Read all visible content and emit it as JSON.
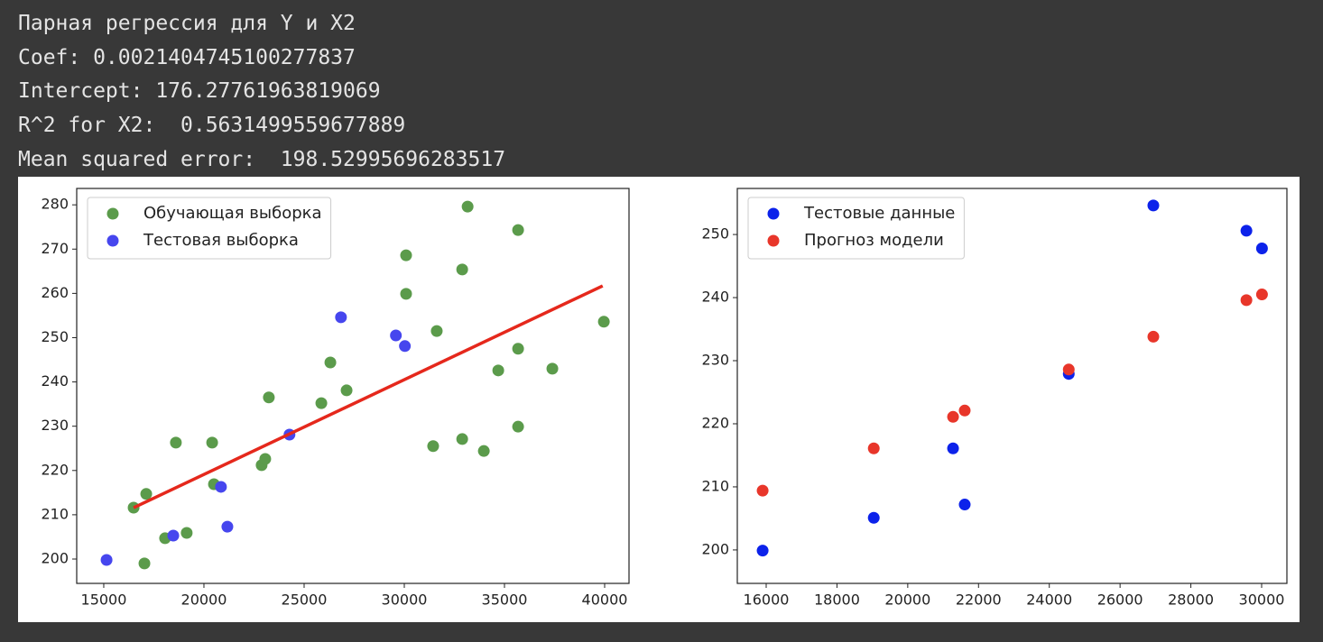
{
  "output_lines": [
    "Парная регрессия для Y и X2",
    "Coef: 0.0021404745100277837",
    "Intercept: 176.27761963819069",
    "R^2 for X2:  0.5631499559677889",
    "Mean squared error:  198.52995696283517"
  ],
  "chart_data": [
    {
      "type": "scatter",
      "xlim": [
        13650,
        41216
      ],
      "ylim": [
        194.5,
        283.7
      ],
      "xticks": [
        15000,
        20000,
        25000,
        30000,
        35000,
        40000
      ],
      "yticks": [
        200,
        210,
        220,
        230,
        240,
        250,
        260,
        270,
        280
      ],
      "legend": "upper left",
      "series": [
        {
          "name": "Обучающая выборка",
          "type": "scatter",
          "color": "#5b9b4b",
          "x": [
            16490,
            17120,
            17030,
            18060,
            19140,
            18600,
            20410,
            20500,
            22880,
            23060,
            23240,
            25860,
            26310,
            27120,
            30090,
            30090,
            31620,
            31440,
            32890,
            33160,
            32890,
            33970,
            34690,
            35680,
            35680,
            35680,
            37390,
            39960
          ],
          "values": [
            211.6,
            214.7,
            199.0,
            204.7,
            205.9,
            226.3,
            226.3,
            216.9,
            221.2,
            222.6,
            236.5,
            235.2,
            244.4,
            238.1,
            259.9,
            268.6,
            251.5,
            225.5,
            265.4,
            279.6,
            227.1,
            224.4,
            242.6,
            274.3,
            247.5,
            229.9,
            243.0,
            253.6
          ]
        },
        {
          "name": "Тестовая выборка",
          "type": "scatter",
          "color": "#4646ee",
          "x": [
            15140,
            18470,
            20850,
            21170,
            24270,
            26840,
            29580,
            30030
          ],
          "values": [
            199.8,
            205.3,
            216.3,
            207.3,
            228.1,
            254.6,
            250.5,
            248.1
          ]
        },
        {
          "type": "line",
          "color": "#e5281c",
          "x": [
            16490,
            39900
          ],
          "values": [
            211.6,
            261.7
          ]
        }
      ]
    },
    {
      "type": "scatter",
      "xlim": [
        15184,
        30714
      ],
      "ylim": [
        194.7,
        257.3
      ],
      "xticks": [
        16000,
        18000,
        20000,
        22000,
        24000,
        26000,
        28000,
        30000
      ],
      "yticks": [
        200,
        210,
        220,
        230,
        240,
        250
      ],
      "legend": "upper left",
      "series": [
        {
          "name": "Тестовые данные",
          "type": "scatter",
          "color": "#0c22ea",
          "x": [
            15900,
            19040,
            21280,
            21610,
            24550,
            26940,
            29570,
            30010
          ],
          "values": [
            199.9,
            205.1,
            216.1,
            207.2,
            227.9,
            254.6,
            250.6,
            247.8
          ]
        },
        {
          "name": "Прогноз модели",
          "type": "scatter",
          "color": "#e8362a",
          "x": [
            15900,
            19040,
            21280,
            21610,
            24550,
            26940,
            29570,
            30010
          ],
          "values": [
            209.4,
            216.1,
            221.1,
            222.1,
            228.6,
            233.8,
            239.6,
            240.5
          ]
        }
      ]
    }
  ]
}
